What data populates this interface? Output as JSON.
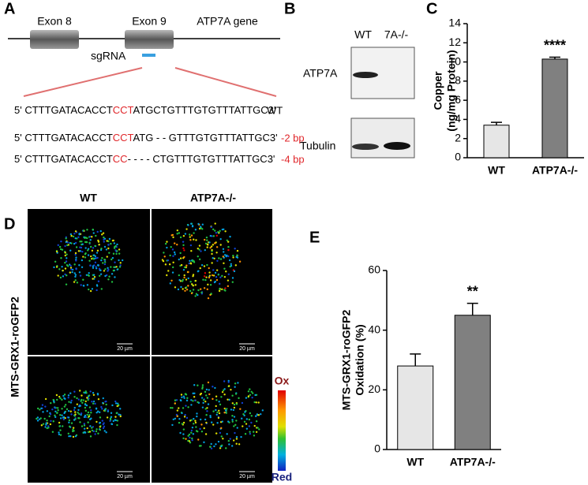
{
  "panel_labels": [
    "A",
    "B",
    "C",
    "D",
    "E"
  ],
  "panel_a": {
    "exons": [
      "Exon 8",
      "Exon 9"
    ],
    "gene": "ATP7A gene",
    "guide": "sgRNA",
    "sequences": [
      {
        "parts": [
          "5' CTTTGATACACCT",
          "CCT",
          "ATGCTGTTTGTGTTTATTGC3'"
        ],
        "tag": "WT"
      },
      {
        "parts": [
          "5' CTTTGATACACCT",
          "CCT",
          "ATG - - GTTTGTGTTTATTGC3'"
        ],
        "tag": "-2 bp"
      },
      {
        "parts": [
          "5' CTTTGATACACCT",
          "CC",
          "- - - - CTGTTTGTGTTTATTGC3'"
        ],
        "tag": "-4 bp"
      }
    ]
  },
  "panel_b": {
    "lanes": [
      "WT",
      "7A-/-"
    ],
    "blots": [
      "ATP7A",
      "Tubulin"
    ]
  },
  "panel_d": {
    "columns": [
      "WT",
      "ATP7A-/-"
    ],
    "row_label": "MTS-GRX1-roGFP2",
    "scale_bar": "20 µm",
    "colorbar": [
      "Ox",
      "Red"
    ]
  },
  "chart_data": [
    {
      "type": "bar",
      "ylabel": [
        "Copper",
        "(ng/mg Protein)"
      ],
      "categories": [
        "WT",
        "ATP7A-/-"
      ],
      "values": [
        3.4,
        10.3
      ],
      "errors": [
        0.3,
        0.2
      ],
      "colors": [
        "#e6e6e6",
        "#808080"
      ],
      "ylim": [
        0,
        14
      ],
      "yticks": [
        0,
        2,
        4,
        6,
        8,
        10,
        12,
        14
      ],
      "annotations": [
        {
          "text": "****",
          "category": "ATP7A-/-"
        }
      ]
    },
    {
      "type": "bar",
      "ylabel": [
        "MTS-GRX1-roGFP2",
        "Oxidation (%)"
      ],
      "categories": [
        "WT",
        "ATP7A-/-"
      ],
      "values": [
        28,
        45
      ],
      "errors": [
        4,
        4
      ],
      "colors": [
        "#e6e6e6",
        "#808080"
      ],
      "ylim": [
        0,
        60
      ],
      "yticks": [
        0,
        20,
        40,
        60
      ],
      "annotations": [
        {
          "text": "**",
          "category": "ATP7A-/-"
        }
      ]
    }
  ]
}
